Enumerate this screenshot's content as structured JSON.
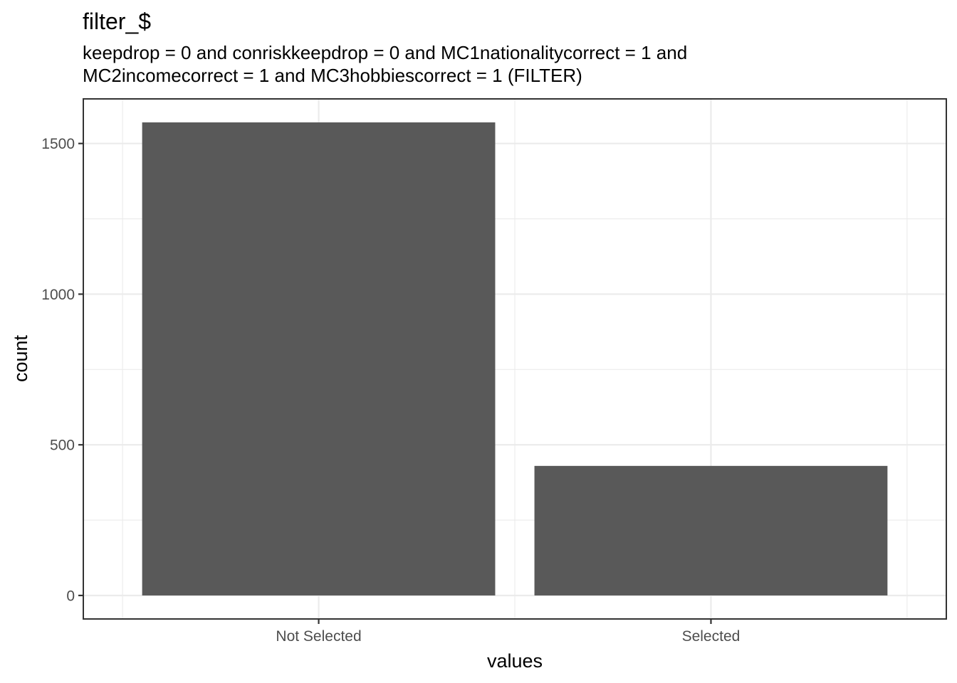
{
  "chart_data": {
    "type": "bar",
    "title": "filter_$",
    "subtitle_lines": [
      "keepdrop = 0 and conriskkeepdrop = 0 and MC1nationalitycorrect = 1 and",
      "MC2incomecorrect = 1 and MC3hobbiescorrect = 1 (FILTER)"
    ],
    "xlabel": "values",
    "ylabel": "count",
    "categories": [
      "Not Selected",
      "Selected"
    ],
    "values": [
      1570,
      430
    ],
    "ylim": [
      -78,
      1648
    ],
    "yticks": [
      0,
      500,
      1000,
      1500
    ],
    "ytick_labels": [
      "0",
      "500",
      "1000",
      "1500"
    ],
    "bar_color": "#595959",
    "grid": true,
    "legend": "none"
  }
}
